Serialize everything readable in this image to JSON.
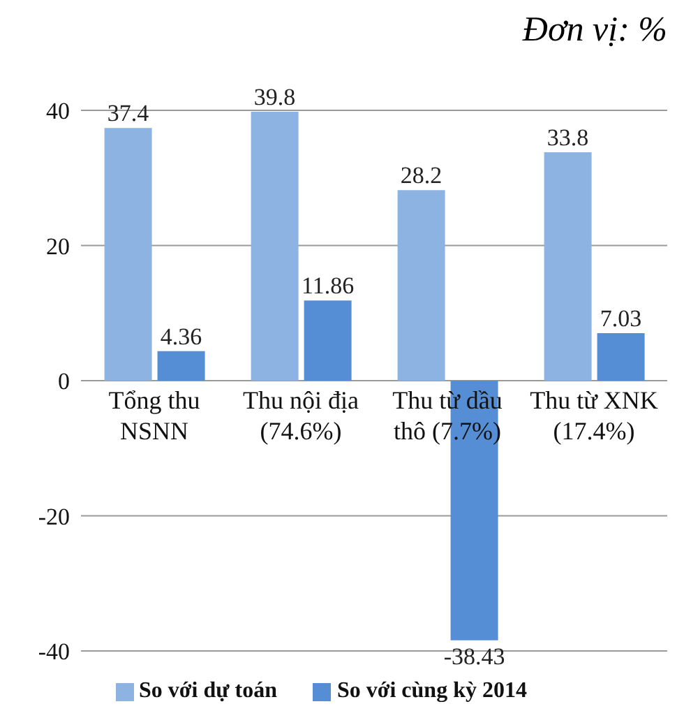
{
  "chart_data": {
    "type": "bar",
    "annotations": [
      "Đơn vị: %"
    ],
    "categories": [
      "Tổng thu NSNN",
      "Thu nội địa (74.6%)",
      "Thu từ dầu thô (7.7%)",
      "Thu từ XNK (17.4%)"
    ],
    "series": [
      {
        "name": "So với dự toán",
        "color": "#8db3e2",
        "values": [
          37.4,
          39.8,
          28.2,
          33.8
        ]
      },
      {
        "name": "So với cùng kỳ 2014",
        "color": "#558ed5",
        "values": [
          4.36,
          11.86,
          -38.43,
          7.03
        ]
      }
    ],
    "ylim": [
      -40,
      40
    ],
    "yticks": [
      -40,
      -20,
      0,
      20,
      40
    ],
    "grid": "y",
    "legend": "bottom",
    "data_labels": true
  }
}
